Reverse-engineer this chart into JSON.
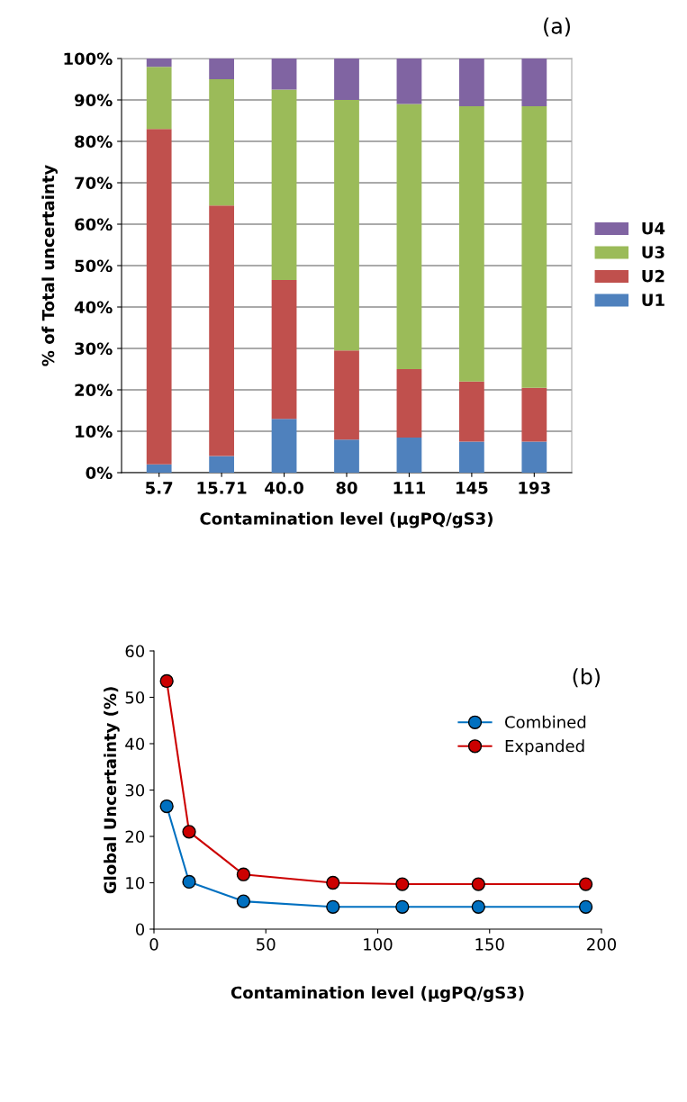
{
  "chart_data": [
    {
      "type": "bar",
      "stacked": true,
      "annotations": [
        "(a)"
      ],
      "xlabel": "Contamination level (µgPQ/gS3)",
      "ylabel": "% of Total uncertainty",
      "categories": [
        "5.7",
        "15.71",
        "40.0",
        "80",
        "111",
        "145",
        "193"
      ],
      "series": [
        {
          "name": "U1",
          "color": "#4f81bd",
          "values": [
            2,
            4,
            13,
            8,
            8.5,
            7.5,
            7.5
          ]
        },
        {
          "name": "U2",
          "color": "#c0504d",
          "values": [
            81,
            60.5,
            33.5,
            21.5,
            16.5,
            14.5,
            13
          ]
        },
        {
          "name": "U3",
          "color": "#9bbb59",
          "values": [
            15,
            30.5,
            46,
            60.5,
            64,
            66.5,
            68
          ]
        },
        {
          "name": "U4",
          "color": "#8064a2",
          "values": [
            2,
            5,
            7.5,
            10,
            11,
            11.5,
            11.5
          ]
        }
      ],
      "ylim": [
        0,
        100
      ],
      "yticks": [
        {
          "value": 0,
          "label": "0%"
        },
        {
          "value": 10,
          "label": "10%"
        },
        {
          "value": 20,
          "label": "20%"
        },
        {
          "value": 30,
          "label": "30%"
        },
        {
          "value": 40,
          "label": "40%"
        },
        {
          "value": 50,
          "label": "50%"
        },
        {
          "value": 60,
          "label": "60%"
        },
        {
          "value": 70,
          "label": "70%"
        },
        {
          "value": 80,
          "label": "80%"
        },
        {
          "value": 90,
          "label": "90%"
        },
        {
          "value": 100,
          "label": "100%"
        }
      ],
      "grid": "y",
      "legend": "right"
    },
    {
      "type": "line",
      "annotations": [
        "(b)"
      ],
      "xlabel": "Contamination level (µgPQ/gS3)",
      "ylabel": "Global Uncertainty (%)",
      "x": [
        5.7,
        15.71,
        40.0,
        80,
        111,
        145,
        193
      ],
      "series": [
        {
          "name": "Combined",
          "color": "#0070c0",
          "values": [
            26.5,
            10.2,
            6,
            4.8,
            4.8,
            4.8,
            4.8
          ]
        },
        {
          "name": "Expanded",
          "color": "#cc0000",
          "values": [
            53.5,
            21,
            11.8,
            10,
            9.7,
            9.7,
            9.7
          ]
        }
      ],
      "xlim": [
        0,
        200
      ],
      "xticks": [
        0,
        50,
        100,
        150,
        200
      ],
      "ylim": [
        0,
        60
      ],
      "yticks": [
        0,
        10,
        20,
        30,
        40,
        50,
        60
      ],
      "grid": false,
      "legend": "top right",
      "marker": "circle"
    }
  ]
}
